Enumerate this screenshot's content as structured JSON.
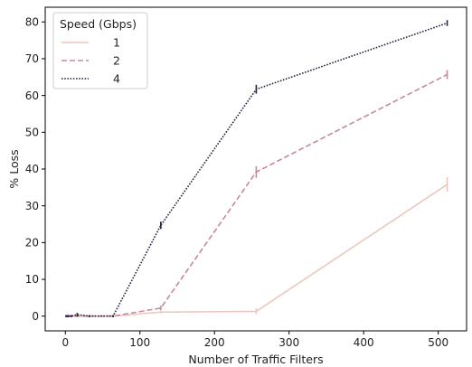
{
  "chart_data": {
    "type": "line",
    "title": "",
    "xlabel": "Number of Traffic Filters",
    "ylabel": "% Loss",
    "xlim": [
      -27,
      538
    ],
    "ylim": [
      -4,
      84
    ],
    "xticks": [
      0,
      100,
      200,
      300,
      400,
      500
    ],
    "yticks": [
      0,
      10,
      20,
      30,
      40,
      50,
      60,
      70,
      80
    ],
    "grid": false,
    "legend": {
      "title": "Speed (Gbps)",
      "position": "top-left"
    },
    "x": [
      1,
      2,
      4,
      8,
      16,
      32,
      64,
      128,
      256,
      512
    ],
    "series": [
      {
        "name": "1",
        "color": "#ecc6bc",
        "dash": "solid",
        "values": [
          0,
          0,
          0,
          0,
          0,
          0,
          0,
          1.1,
          1.3,
          35.8
        ],
        "errors": [
          0.3,
          0.3,
          0.3,
          0.3,
          0.3,
          0.3,
          0.3,
          0.3,
          0.8,
          2.0
        ]
      },
      {
        "name": "2",
        "color": "#c88898",
        "dash": "dashed",
        "values": [
          0,
          0,
          0,
          0,
          0,
          0,
          0,
          2.2,
          39.2,
          65.7
        ],
        "errors": [
          0.3,
          0.3,
          0.3,
          0.3,
          0.3,
          0.3,
          0.3,
          0.6,
          1.6,
          1.2
        ]
      },
      {
        "name": "4",
        "color": "#2e1f3e",
        "dash": "dotted",
        "values": [
          0,
          0,
          0,
          0,
          0.4,
          0,
          0,
          24.7,
          61.7,
          79.7
        ],
        "errors": [
          0.3,
          0.3,
          0.3,
          0.3,
          0.5,
          0.3,
          0.3,
          1.0,
          1.2,
          0.8
        ]
      }
    ]
  }
}
